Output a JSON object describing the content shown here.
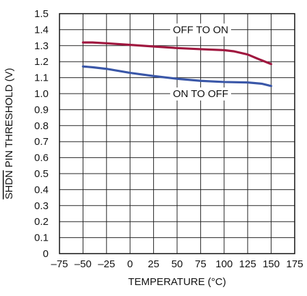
{
  "chart_data": {
    "type": "line",
    "title": "",
    "xlabel": "TEMPERATURE (°C)",
    "ylabel_overlined": "SHDN",
    "ylabel_rest": " PIN THRESHOLD (V)",
    "xlim": [
      -75,
      175
    ],
    "ylim": [
      0,
      1.5
    ],
    "x_ticks": [
      -75,
      -50,
      -25,
      0,
      25,
      50,
      75,
      100,
      125,
      150,
      175
    ],
    "x_tick_labels": [
      "–75",
      "–50",
      "–25",
      "0",
      "25",
      "50",
      "75",
      "100",
      "125",
      "150",
      "175"
    ],
    "y_ticks": [
      0,
      0.1,
      0.2,
      0.3,
      0.4,
      0.5,
      0.6,
      0.7,
      0.8,
      0.9,
      1.0,
      1.1,
      1.2,
      1.3,
      1.4,
      1.5
    ],
    "y_tick_labels": [
      "0",
      "0.1",
      "0.2",
      "0.3",
      "0.4",
      "0.5",
      "0.6",
      "0.7",
      "0.8",
      "0.9",
      "1.0",
      "1.1",
      "1.2",
      "1.3",
      "1.4",
      "1.5"
    ],
    "grid": true,
    "series": [
      {
        "color": "#a0173f",
        "x": [
          -50,
          -40,
          -25,
          0,
          25,
          50,
          75,
          100,
          110,
          125,
          135,
          150
        ],
        "y": [
          1.32,
          1.32,
          1.315,
          1.305,
          1.295,
          1.285,
          1.278,
          1.272,
          1.265,
          1.245,
          1.22,
          1.185
        ]
      },
      {
        "color": "#3a57a8",
        "x": [
          -50,
          -40,
          -25,
          0,
          25,
          50,
          75,
          100,
          125,
          140,
          150
        ],
        "y": [
          1.17,
          1.165,
          1.155,
          1.13,
          1.11,
          1.093,
          1.08,
          1.073,
          1.07,
          1.062,
          1.048
        ]
      }
    ],
    "annotations": [
      {
        "text": "OFF TO ON",
        "x": 75,
        "y": 1.4
      },
      {
        "text": "ON TO OFF",
        "x": 75,
        "y": 1.0
      }
    ]
  }
}
